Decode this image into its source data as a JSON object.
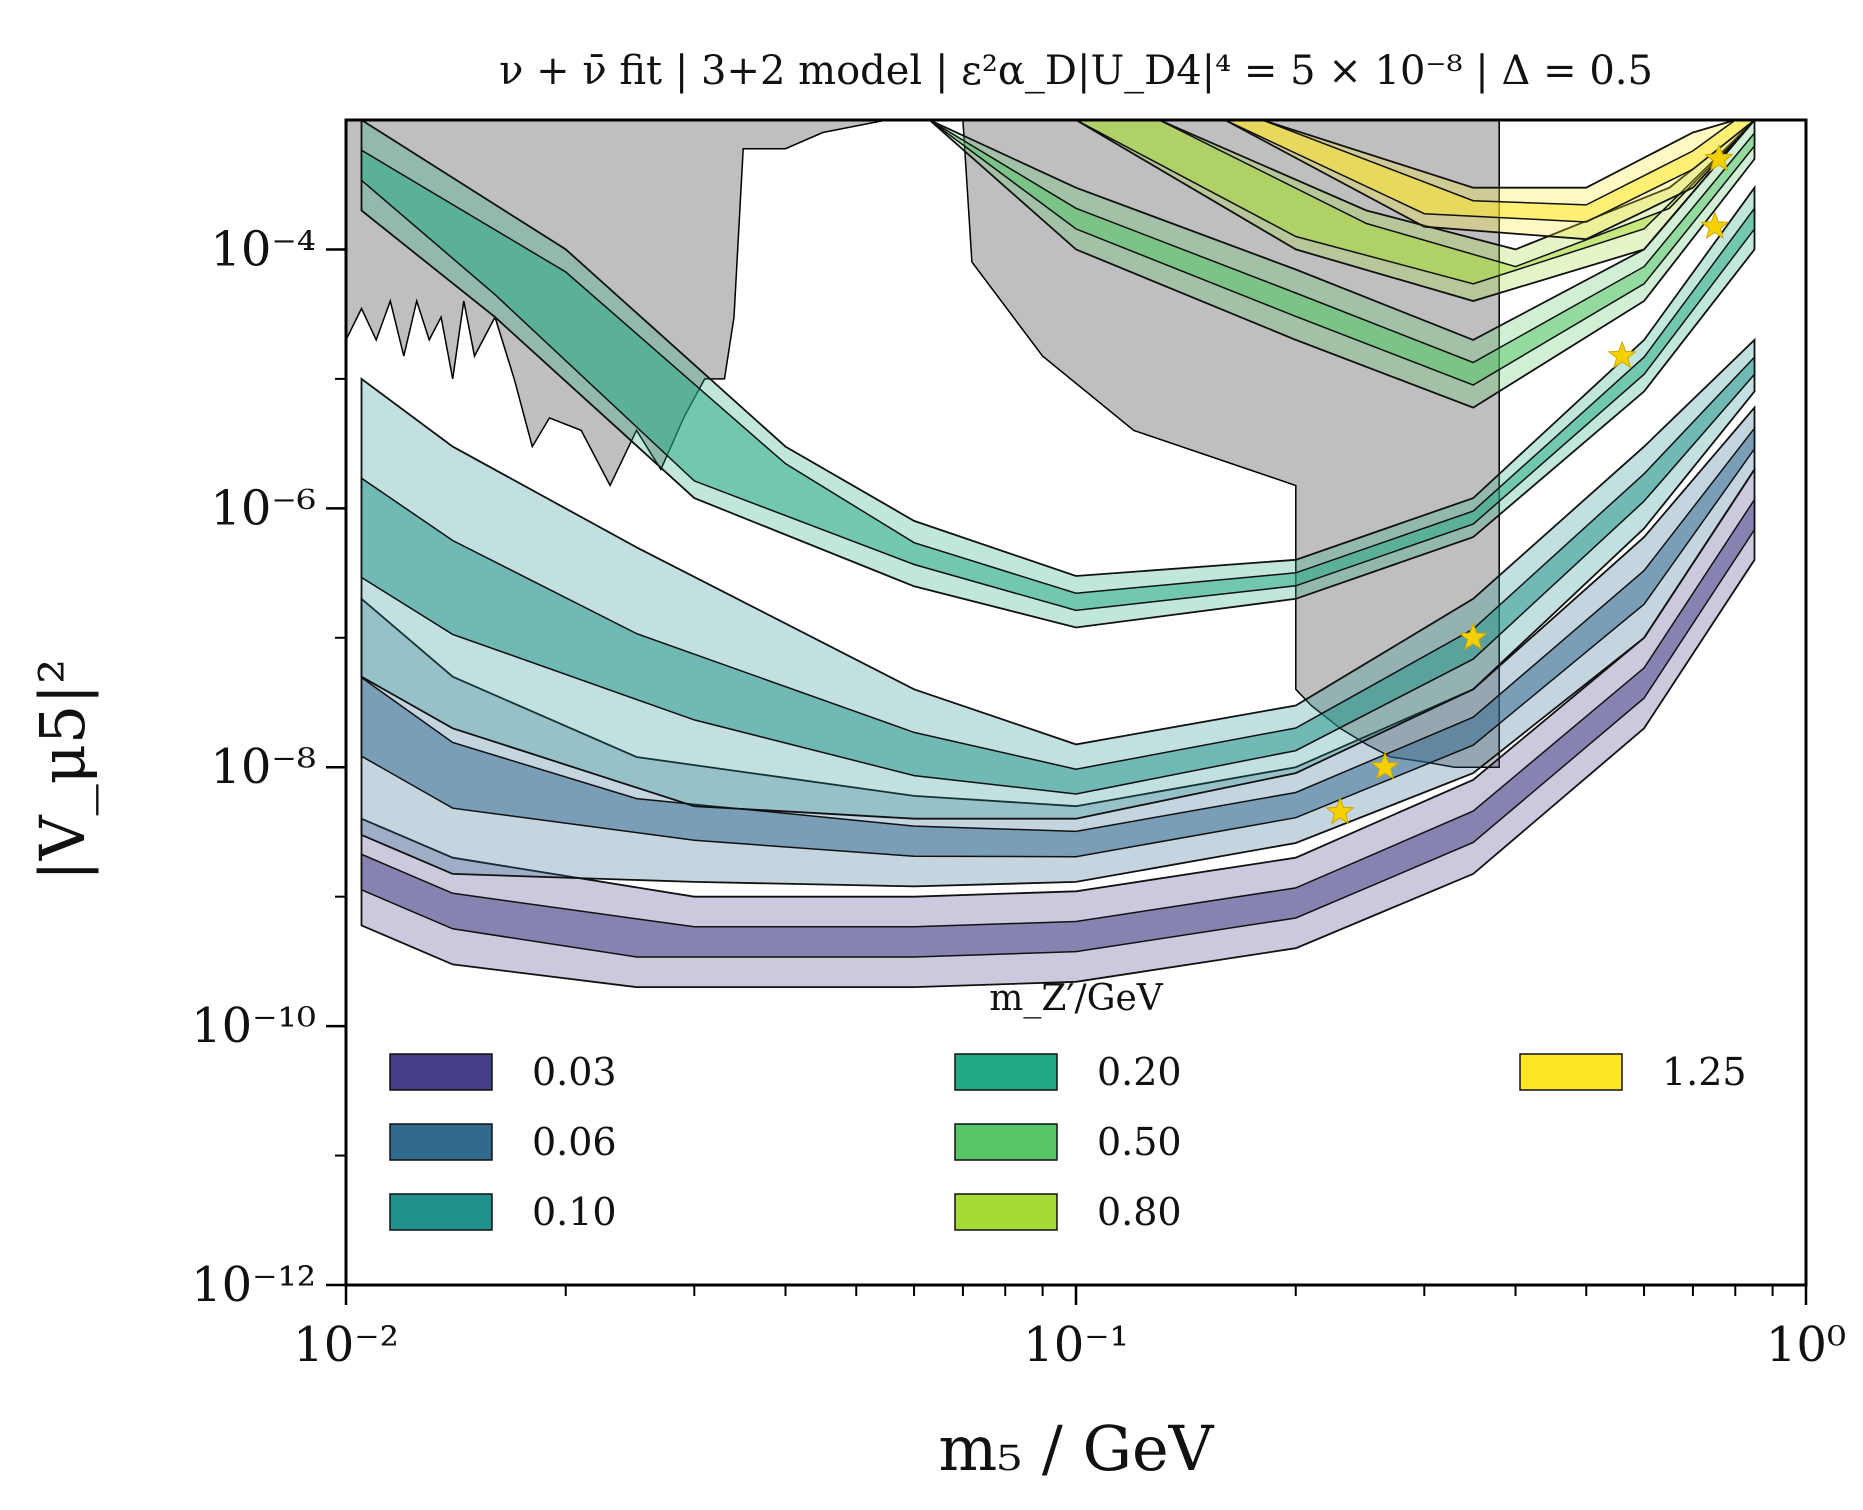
{
  "chart_data": {
    "type": "contour",
    "title": "ν + ν̄ fit | 3+2 model | ε²α_D|U_D4|⁴ = 5 × 10⁻⁸ | Δ = 0.5",
    "xlabel": "m₅ / GeV",
    "ylabel": "|V_μ5|²",
    "xscale": "log",
    "yscale": "log",
    "xlim": [
      0.01,
      1.0
    ],
    "ylim": [
      1e-12,
      0.001
    ],
    "x_ticks": [
      {
        "value": 0.01,
        "label": "10⁻²"
      },
      {
        "value": 0.1,
        "label": "10⁻¹"
      },
      {
        "value": 1.0,
        "label": "10⁰"
      }
    ],
    "y_ticks": [
      {
        "value": 1e-12,
        "label": "10⁻¹²"
      },
      {
        "value": 1e-10,
        "label": "10⁻¹⁰"
      },
      {
        "value": 1e-08,
        "label": "10⁻⁸"
      },
      {
        "value": 1e-06,
        "label": "10⁻⁶"
      },
      {
        "value": 0.0001,
        "label": "10⁻⁴"
      }
    ],
    "legend": {
      "title": "m_Z′/GeV",
      "placement": "lower-center",
      "entries": [
        {
          "label": "0.03",
          "color": "#433e85"
        },
        {
          "label": "0.06",
          "color": "#30688e"
        },
        {
          "label": "0.10",
          "color": "#21918c"
        },
        {
          "label": "0.20",
          "color": "#22a884"
        },
        {
          "label": "0.50",
          "color": "#56c667"
        },
        {
          "label": "0.80",
          "color": "#a5db36"
        },
        {
          "label": "1.25",
          "color": "#fde725"
        }
      ]
    },
    "excluded_region_color": "#bfbfbf",
    "contour_bands": [
      {
        "mzp": "0.03",
        "color": "#433e85",
        "lower": [
          [
            0.0105,
            6e-10
          ],
          [
            0.014,
            3e-10
          ],
          [
            0.025,
            2e-10
          ],
          [
            0.06,
            2e-10
          ],
          [
            0.1,
            2.2e-10
          ],
          [
            0.2,
            4e-10
          ],
          [
            0.35,
            1.5e-09
          ],
          [
            0.6,
            2e-08
          ],
          [
            0.85,
            4e-07
          ]
        ],
        "upper": [
          [
            0.0105,
            4e-09
          ],
          [
            0.014,
            2e-09
          ],
          [
            0.03,
            1e-09
          ],
          [
            0.06,
            1e-09
          ],
          [
            0.1,
            1.1e-09
          ],
          [
            0.2,
            2e-09
          ],
          [
            0.35,
            8e-09
          ],
          [
            0.6,
            1e-07
          ],
          [
            0.85,
            2e-06
          ]
        ]
      },
      {
        "mzp": "0.06",
        "color": "#30688e",
        "lower": [
          [
            0.0105,
            3e-09
          ],
          [
            0.014,
            1.5e-09
          ],
          [
            0.03,
            1.3e-09
          ],
          [
            0.06,
            1.2e-09
          ],
          [
            0.1,
            1.3e-09
          ],
          [
            0.2,
            2.6e-09
          ],
          [
            0.35,
            9e-09
          ],
          [
            0.6,
            1e-07
          ],
          [
            0.85,
            2e-06
          ]
        ],
        "upper": [
          [
            0.0105,
            2e-07
          ],
          [
            0.014,
            5e-08
          ],
          [
            0.025,
            1.2e-08
          ],
          [
            0.06,
            6e-09
          ],
          [
            0.1,
            5e-09
          ],
          [
            0.2,
            1e-08
          ],
          [
            0.35,
            4e-08
          ],
          [
            0.6,
            6e-07
          ],
          [
            0.85,
            6e-06
          ]
        ]
      },
      {
        "mzp": "0.10",
        "color": "#21918c",
        "lower": [
          [
            0.0105,
            5e-08
          ],
          [
            0.014,
            2e-08
          ],
          [
            0.03,
            5e-09
          ],
          [
            0.06,
            4e-09
          ],
          [
            0.1,
            4e-09
          ],
          [
            0.2,
            9e-09
          ],
          [
            0.35,
            4e-08
          ],
          [
            0.6,
            7e-07
          ],
          [
            0.85,
            8e-06
          ]
        ],
        "upper": [
          [
            0.0105,
            1e-05
          ],
          [
            0.014,
            3e-06
          ],
          [
            0.025,
            5e-07
          ],
          [
            0.06,
            4e-08
          ],
          [
            0.1,
            1.5e-08
          ],
          [
            0.2,
            3e-08
          ],
          [
            0.35,
            2e-07
          ],
          [
            0.6,
            3e-06
          ],
          [
            0.85,
            2e-05
          ]
        ]
      },
      {
        "mzp": "0.20",
        "color": "#22a884",
        "lower": [
          [
            0.0105,
            0.0002
          ],
          [
            0.016,
            3e-05
          ],
          [
            0.03,
            1.2e-06
          ],
          [
            0.06,
            2.5e-07
          ],
          [
            0.1,
            1.2e-07
          ],
          [
            0.2,
            2e-07
          ],
          [
            0.35,
            6e-07
          ],
          [
            0.6,
            8e-06
          ],
          [
            0.85,
            0.0001
          ]
        ],
        "upper": [
          [
            0.0105,
            0.001
          ],
          [
            0.02,
            0.0001
          ],
          [
            0.04,
            3e-06
          ],
          [
            0.06,
            8e-07
          ],
          [
            0.1,
            3e-07
          ],
          [
            0.2,
            4e-07
          ],
          [
            0.35,
            1.2e-06
          ],
          [
            0.6,
            2e-05
          ],
          [
            0.85,
            0.0003
          ]
        ]
      },
      {
        "mzp": "0.50",
        "color": "#56c667",
        "lower": [
          [
            0.063,
            0.001
          ],
          [
            0.1,
            0.0001
          ],
          [
            0.2,
            2e-05
          ],
          [
            0.35,
            6e-06
          ],
          [
            0.6,
            4e-05
          ],
          [
            0.85,
            0.0005
          ]
        ],
        "upper": [
          [
            0.063,
            0.001
          ],
          [
            0.1,
            0.0003
          ],
          [
            0.2,
            7e-05
          ],
          [
            0.35,
            2e-05
          ],
          [
            0.6,
            0.0001
          ],
          [
            0.85,
            0.001
          ]
        ]
      },
      {
        "mzp": "0.80",
        "color": "#a5db36",
        "lower": [
          [
            0.1,
            0.001
          ],
          [
            0.2,
            0.0001
          ],
          [
            0.35,
            4e-05
          ],
          [
            0.6,
            0.0001
          ],
          [
            0.85,
            0.001
          ]
        ],
        "upper": [
          [
            0.13,
            0.001
          ],
          [
            0.25,
            0.0002
          ],
          [
            0.4,
            0.0001
          ],
          [
            0.65,
            0.0003
          ],
          [
            0.85,
            0.001
          ]
        ]
      },
      {
        "mzp": "1.25",
        "color": "#fde725",
        "lower": [
          [
            0.16,
            0.001
          ],
          [
            0.3,
            0.00015
          ],
          [
            0.5,
            0.00012
          ],
          [
            0.7,
            0.0003
          ],
          [
            0.85,
            0.001
          ]
        ],
        "upper": [
          [
            0.18,
            0.001
          ],
          [
            0.35,
            0.0003
          ],
          [
            0.5,
            0.0003
          ],
          [
            0.7,
            0.0008
          ],
          [
            0.8,
            0.001
          ]
        ]
      }
    ],
    "best_fit_points": [
      {
        "mzp": "0.03",
        "x": 0.23,
        "y": 4.5e-09
      },
      {
        "mzp": "0.06",
        "x": 0.265,
        "y": 1e-08
      },
      {
        "mzp": "0.10",
        "x": 0.35,
        "y": 1e-07
      },
      {
        "mzp": "0.20",
        "x": 0.56,
        "y": 1.5e-05
      },
      {
        "mzp": "0.50",
        "x": 0.75,
        "y": 0.00015
      },
      {
        "mzp": "0.80",
        "x": 0.76,
        "y": 0.0005
      }
    ]
  }
}
